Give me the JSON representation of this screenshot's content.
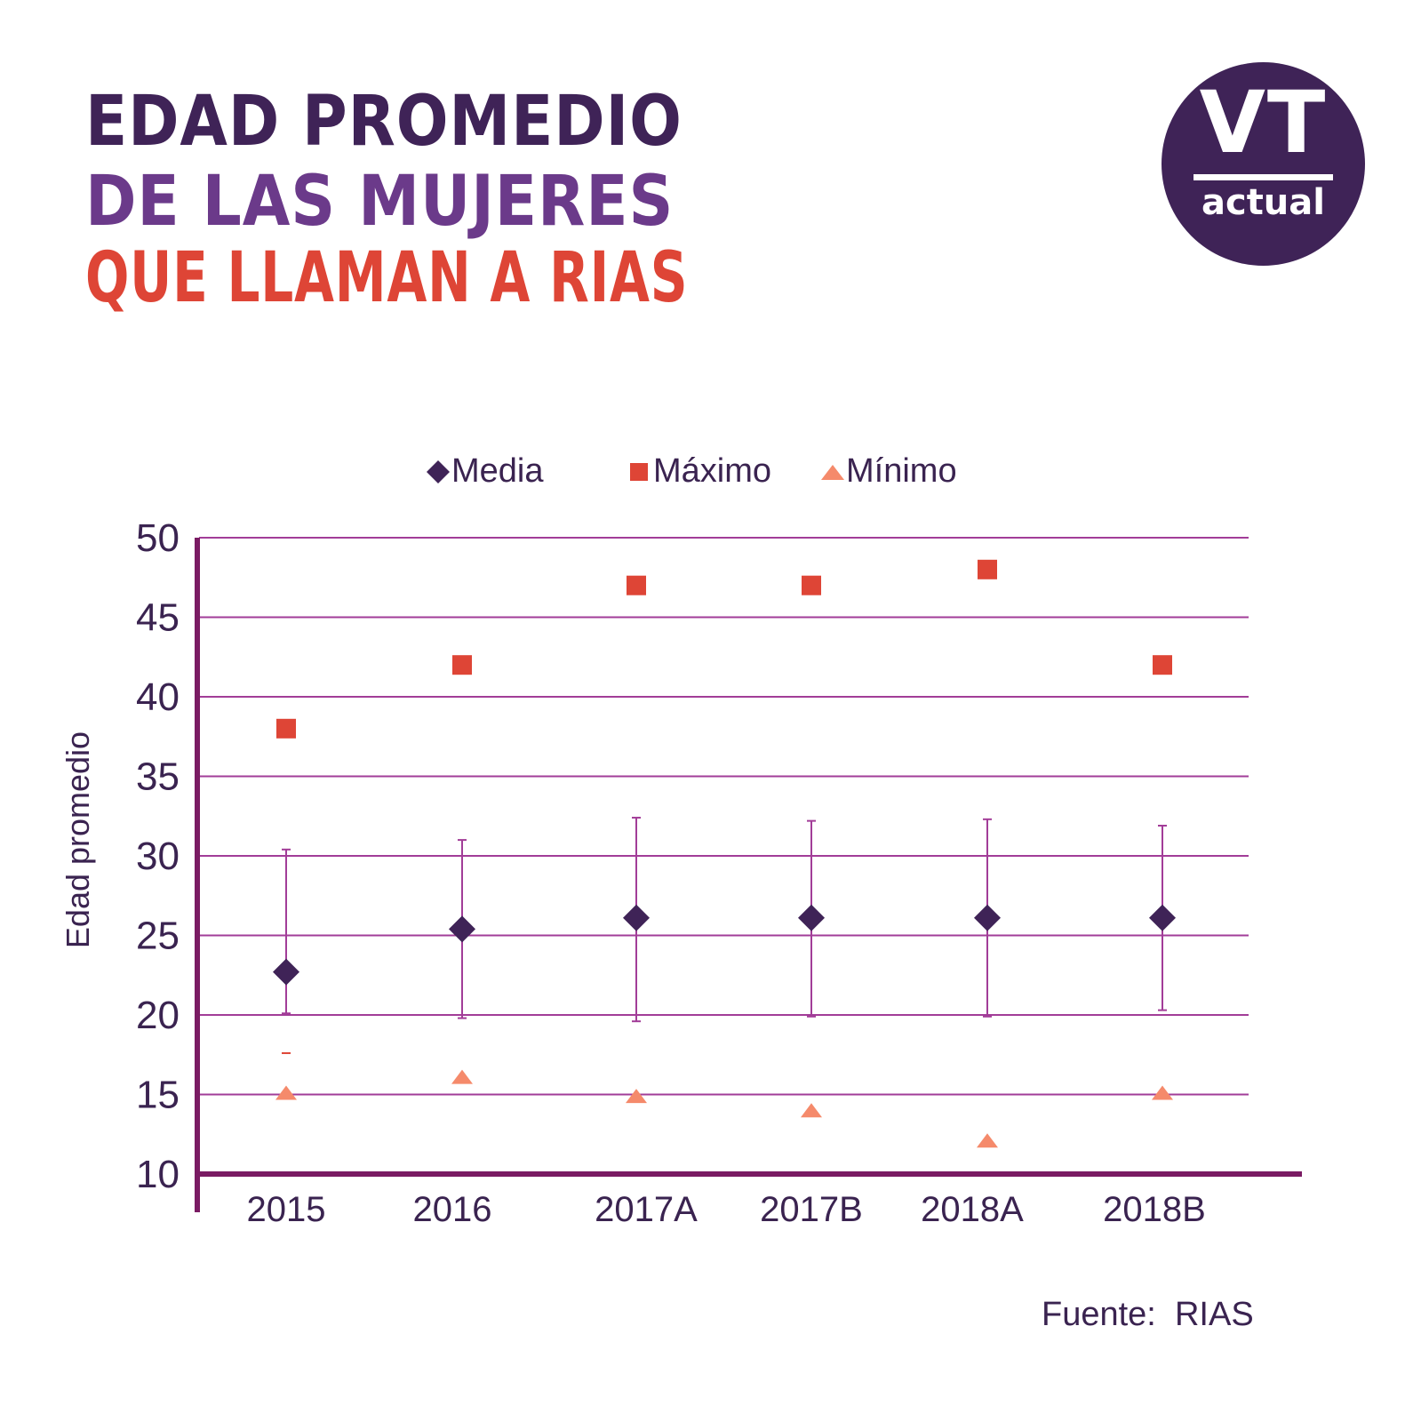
{
  "header": {
    "title_line1": "EDAD PROMEDIO",
    "title_line2": "DE LAS MUJERES",
    "title_line3": "QUE LLAMAN A RIAS"
  },
  "logo": {
    "top": "VT",
    "bottom": "actual"
  },
  "colors": {
    "dark_purple": "#3f2357",
    "mid_purple": "#6b3a8a",
    "red": "#de4536",
    "salmon": "#f58a6b",
    "axis": "#7a1b63",
    "grid": "#a23d98",
    "text": "#3a2350"
  },
  "source": "Fuente:  RIAS",
  "chart_data": {
    "type": "scatter",
    "categories": [
      "2015",
      "2016",
      "2017A",
      "2017B",
      "2018A",
      "2018B"
    ],
    "series": [
      {
        "name": "Media",
        "marker": "diamond",
        "values": [
          22.7,
          25.4,
          26.1,
          26.1,
          26.1,
          26.1
        ]
      },
      {
        "name": "Máximo",
        "marker": "square",
        "values": [
          38,
          42,
          47,
          47,
          48,
          42
        ]
      },
      {
        "name": "Mínimo",
        "marker": "triangle",
        "values": [
          15,
          16,
          14.8,
          13.9,
          12,
          15
        ]
      }
    ],
    "error_bars": {
      "upper": [
        30.4,
        31,
        32.4,
        32.2,
        32.3,
        31.9
      ],
      "lower": [
        20.1,
        19.8,
        19.6,
        19.9,
        19.9,
        20.3
      ]
    },
    "extra_tick": {
      "category": "2015",
      "value": 17.6
    },
    "ylabel": "Edad promedio",
    "xlabel": "",
    "ylim": [
      10,
      50
    ],
    "yticks": [
      10,
      15,
      20,
      25,
      30,
      35,
      40,
      45,
      50
    ],
    "legend": "top-center"
  }
}
